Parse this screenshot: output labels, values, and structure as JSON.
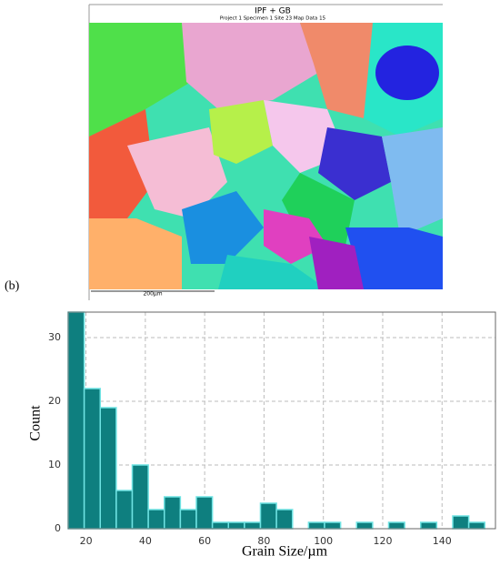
{
  "map": {
    "title": "IPF + GB",
    "subtitle": "Project 1 Specimen 1 Site 23 Map Data 15",
    "scale_bar": "200µm"
  },
  "panel_label": "(b)",
  "chart_data": {
    "type": "histogram",
    "x_label": "Grain Size/µm",
    "y_label": "Count",
    "bins": [
      14,
      19.4,
      24.8,
      30.2,
      35.6,
      41,
      46.4,
      51.8,
      57.2,
      62.6,
      68,
      73.4,
      78.8,
      84.2,
      89.6,
      95,
      100.4,
      105.8,
      111.2,
      116.6,
      122,
      127.4,
      132.8,
      138.2,
      143.6,
      149,
      154.4
    ],
    "values": [
      34,
      22,
      19,
      6,
      10,
      3,
      5,
      3,
      5,
      1,
      1,
      1,
      4,
      3,
      0,
      1,
      1,
      0,
      1,
      0,
      1,
      0,
      1,
      0,
      2,
      1
    ],
    "color": "#0e7f7f",
    "edge_color": "#6fe3e3",
    "xlim": [
      14,
      158
    ],
    "ylim": [
      0,
      34
    ],
    "xticks": [
      20,
      40,
      60,
      80,
      100,
      120,
      140
    ],
    "yticks": [
      0,
      10,
      20,
      30
    ],
    "grid": true
  }
}
